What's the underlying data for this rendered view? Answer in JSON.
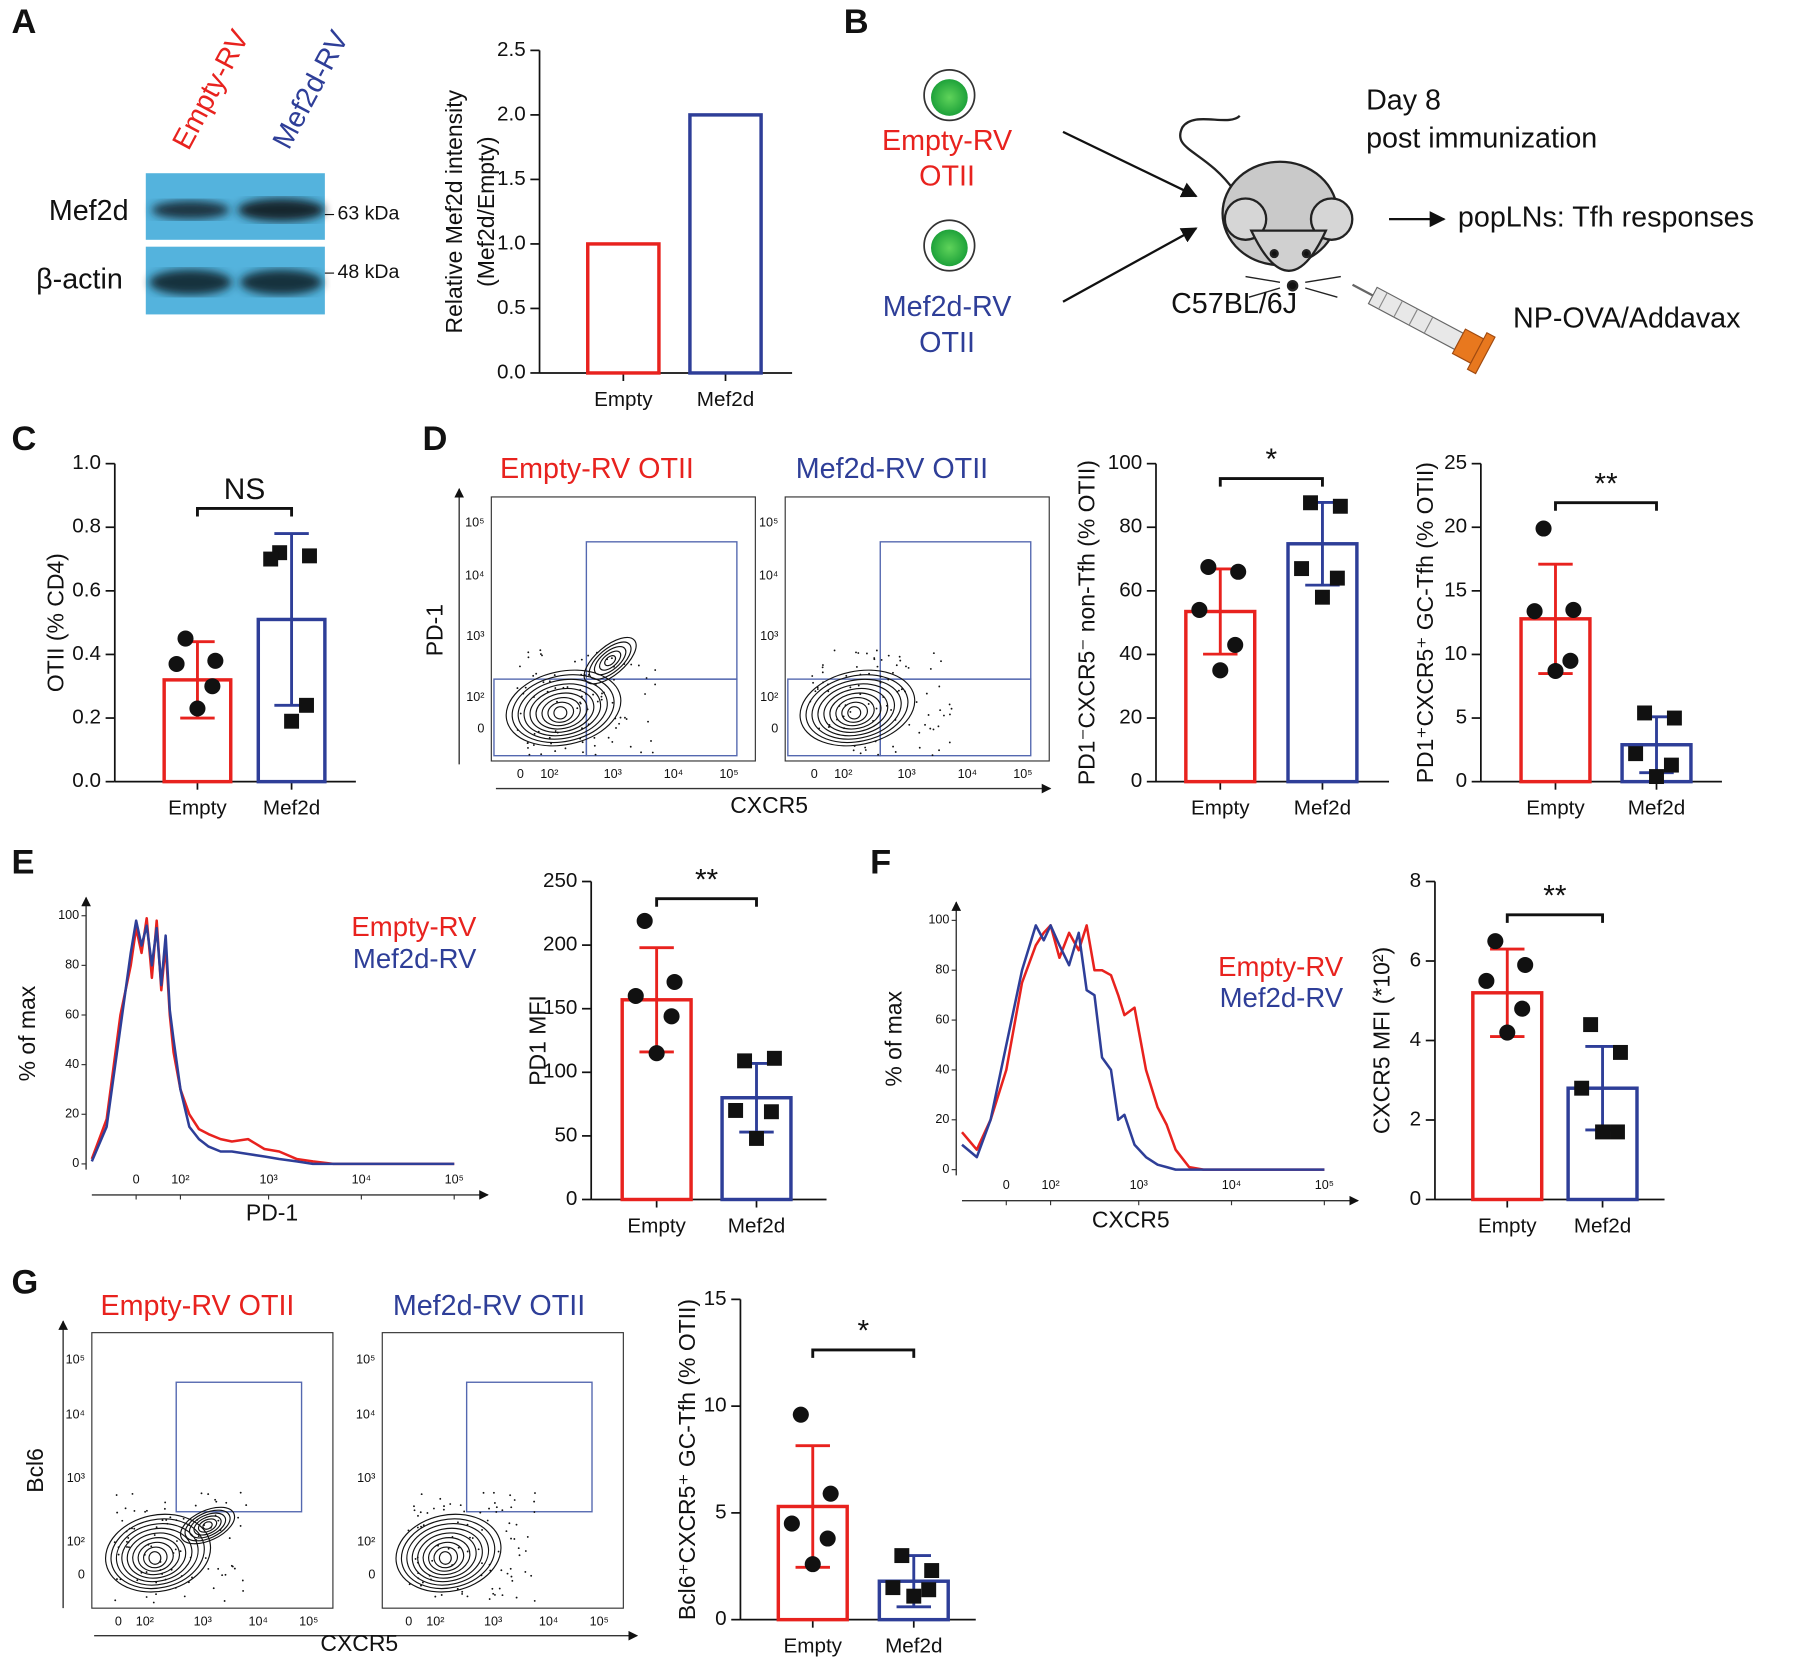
{
  "panel_labels": [
    "A",
    "B",
    "C",
    "D",
    "E",
    "F",
    "G"
  ],
  "blot": {
    "lanes": [
      "Empty-RV",
      "Mef2d-RV"
    ],
    "bands": [
      "Mef2d",
      "β-actin"
    ],
    "markers": [
      "63 kDa",
      "48 kDa"
    ]
  },
  "schematic": {
    "cells": [
      {
        "label": "Empty-RV",
        "sub": "OTII"
      },
      {
        "label": "Mef2d-RV",
        "sub": "OTII"
      }
    ],
    "timepoint": [
      "Day 8",
      "post immunization"
    ],
    "readout": "popLNs: Tfh responses",
    "mouse": "C57BL/6J",
    "injection": "NP-OVA/Addavax"
  },
  "flow_D": {
    "titles": [
      "Empty-RV OTII",
      "Mef2d-RV OTII"
    ],
    "xlabel": "CXCR5",
    "ylabel": "PD-1",
    "ticks": [
      "0",
      "10²",
      "10³",
      "10⁴",
      "10⁵"
    ]
  },
  "flow_G": {
    "titles": [
      "Empty-RV OTII",
      "Mef2d-RV OTII"
    ],
    "xlabel": "CXCR5",
    "ylabel": "Bcl6",
    "ticks": [
      "0",
      "10²",
      "10³",
      "10⁴",
      "10⁵"
    ]
  },
  "chart_data": [
    {
      "type": "bar",
      "ylabel": [
        "Relative Mef2d intensity",
        "(Mef2d/Empty)"
      ],
      "categories": [
        "Empty",
        "Mef2d"
      ],
      "values": [
        1,
        2
      ],
      "colors": [
        "#e8221e",
        "#2e3e98"
      ],
      "ylim": [
        0,
        2.5
      ],
      "yticks": [
        {
          "value": 0,
          "label": "0.0"
        },
        0.5,
        {
          "value": 1,
          "label": "1.0"
        },
        1.5,
        {
          "value": 2,
          "label": "2.0"
        },
        2.5
      ]
    },
    {
      "type": "bar",
      "ylabel": "OTII (% CD4)",
      "categories": [
        "Empty",
        "Mef2d"
      ],
      "values": [
        0.32,
        0.51
      ],
      "errors": [
        0.12,
        0.27
      ],
      "points": [
        [
          0.45,
          0.38,
          0.37,
          0.3,
          0.23
        ],
        [
          0.72,
          0.71,
          0.7,
          0.24,
          0.19
        ]
      ],
      "markers": [
        "circle",
        "square"
      ],
      "colors": [
        "#e8221e",
        "#2e3e98"
      ],
      "ylim": [
        0,
        1
      ],
      "yticks": [
        {
          "value": 0,
          "label": "0.0"
        },
        0.2,
        0.4,
        0.6,
        0.8,
        {
          "value": 1,
          "label": "1.0"
        }
      ],
      "annotation": "NS"
    },
    {
      "type": "bar",
      "ylabel": "PD1⁻CXCR5⁻ non-Tfh (% OTII)",
      "categories": [
        "Empty",
        "Mef2d"
      ],
      "values": [
        53.5,
        74.8
      ],
      "errors": [
        13.4,
        13
      ],
      "points": [
        [
          67.5,
          66,
          54,
          43,
          35
        ],
        [
          87.7,
          86.6,
          67,
          64,
          58
        ]
      ],
      "markers": [
        "circle",
        "square"
      ],
      "colors": [
        "#e8221e",
        "#2e3e98"
      ],
      "ylim": [
        0,
        100
      ],
      "yticks": [
        0,
        20,
        40,
        60,
        80,
        100
      ],
      "annotation": "*"
    },
    {
      "type": "bar",
      "ylabel": "PD1⁺CXCR5⁺ GC-Tfh (% OTII)",
      "categories": [
        "Empty",
        "Mef2d"
      ],
      "values": [
        12.8,
        2.9
      ],
      "errors": [
        4.3,
        2.2
      ],
      "points": [
        [
          19.9,
          13.5,
          13.4,
          9.5,
          8.7
        ],
        [
          5.4,
          5,
          2.2,
          1.3,
          0.4
        ]
      ],
      "markers": [
        "circle",
        "square"
      ],
      "colors": [
        "#e8221e",
        "#2e3e98"
      ],
      "ylim": [
        0,
        25
      ],
      "yticks": [
        0,
        5,
        10,
        15,
        20,
        25
      ],
      "annotation": "**"
    },
    {
      "type": "line",
      "xscale": "biexponential",
      "xlabel": "PD-1",
      "ylabel": "% of max",
      "x": [
        -100,
        -60,
        -30,
        -10,
        0,
        10,
        20,
        30,
        40,
        50,
        60,
        70,
        80,
        100,
        130,
        170,
        220,
        300,
        400,
        600,
        900,
        1300,
        2000,
        3000,
        5000,
        10000,
        100000
      ],
      "series": [
        {
          "name": "Empty-RV",
          "color": "#e8221e",
          "values": [
            2,
            18,
            60,
            80,
            95,
            85,
            99,
            75,
            98,
            70,
            88,
            60,
            45,
            30,
            20,
            14,
            12,
            10,
            9,
            10,
            6,
            5,
            2,
            1,
            0,
            0,
            0
          ]
        },
        {
          "name": "Mef2d-RV",
          "color": "#2e3e98",
          "values": [
            1,
            15,
            55,
            85,
            98,
            88,
            96,
            80,
            95,
            72,
            92,
            62,
            50,
            30,
            15,
            10,
            7,
            5,
            5,
            4,
            3,
            2,
            1,
            0,
            0,
            0,
            0
          ]
        }
      ],
      "xlim": [
        -100,
        200000
      ],
      "xticks": [
        0,
        {
          "value": 100,
          "label": "10²"
        },
        {
          "value": 1000,
          "label": "10³"
        },
        {
          "value": 10000,
          "label": "10⁴"
        },
        {
          "value": 100000,
          "label": "10⁵"
        }
      ],
      "ylim": [
        0,
        105
      ],
      "yticks": [
        0,
        20,
        40,
        60,
        80,
        100
      ]
    },
    {
      "type": "bar",
      "ylabel": "PD1 MFI",
      "categories": [
        "Empty",
        "Mef2d"
      ],
      "values": [
        157,
        80
      ],
      "errors": [
        41,
        27
      ],
      "points": [
        [
          219,
          171,
          160,
          144,
          115
        ],
        [
          109,
          111,
          70,
          69,
          48
        ]
      ],
      "markers": [
        "circle",
        "square"
      ],
      "colors": [
        "#e8221e",
        "#2e3e98"
      ],
      "ylim": [
        0,
        250
      ],
      "yticks": [
        0,
        50,
        100,
        150,
        200,
        250
      ],
      "annotation": "**"
    },
    {
      "type": "line",
      "xscale": "biexponential",
      "xlabel": "CXCR5",
      "ylabel": "% of max",
      "x": [
        -100,
        -60,
        -30,
        0,
        30,
        60,
        80,
        100,
        130,
        170,
        220,
        270,
        330,
        400,
        500,
        600,
        700,
        900,
        1200,
        1600,
        2000,
        2500,
        3500,
        5000,
        100000
      ],
      "series": [
        {
          "name": "Empty-RV",
          "color": "#e8221e",
          "values": [
            15,
            8,
            20,
            40,
            75,
            90,
            95,
            98,
            85,
            95,
            88,
            98,
            80,
            80,
            78,
            70,
            62,
            65,
            40,
            25,
            18,
            8,
            1,
            0,
            0
          ]
        },
        {
          "name": "Mef2d-RV",
          "color": "#2e3e98",
          "values": [
            10,
            5,
            20,
            50,
            80,
            98,
            92,
            98,
            90,
            82,
            95,
            72,
            70,
            45,
            40,
            20,
            22,
            10,
            5,
            2,
            1,
            0,
            0,
            0,
            0
          ]
        }
      ],
      "xlim": [
        -100,
        200000
      ],
      "xticks": [
        0,
        {
          "value": 100,
          "label": "10²"
        },
        {
          "value": 1000,
          "label": "10³"
        },
        {
          "value": 10000,
          "label": "10⁴"
        },
        {
          "value": 100000,
          "label": "10⁵"
        }
      ],
      "ylim": [
        0,
        105
      ],
      "yticks": [
        0,
        20,
        40,
        60,
        80,
        100
      ]
    },
    {
      "type": "bar",
      "ylabel": "CXCR5 MFI (*10²)",
      "categories": [
        "Empty",
        "Mef2d"
      ],
      "values": [
        5.2,
        2.8
      ],
      "errors": [
        1.1,
        1.05
      ],
      "points": [
        [
          6.5,
          5.9,
          5.5,
          4.8,
          4.2
        ],
        [
          4.4,
          3.7,
          2.8,
          1.7,
          1.7
        ]
      ],
      "markers": [
        "circle",
        "square"
      ],
      "colors": [
        "#e8221e",
        "#2e3e98"
      ],
      "ylim": [
        0,
        8
      ],
      "yticks": [
        0,
        2,
        4,
        6,
        8
      ],
      "annotation": "**"
    },
    {
      "type": "bar",
      "ylabel": "Bcl6⁺CXCR5⁺ GC-Tfh (% OTII)",
      "categories": [
        "Empty",
        "Mef2d"
      ],
      "values": [
        5.3,
        1.8
      ],
      "errors": [
        2.85,
        1.2
      ],
      "points": [
        [
          9.6,
          5.9,
          4.5,
          3.8,
          2.6
        ],
        [
          3,
          2.3,
          1.5,
          1.4,
          1.1
        ]
      ],
      "markers": [
        "circle",
        "square"
      ],
      "colors": [
        "#e8221e",
        "#2e3e98"
      ],
      "ylim": [
        0,
        15
      ],
      "yticks": [
        0,
        5,
        10,
        15
      ],
      "annotation": "*"
    }
  ]
}
